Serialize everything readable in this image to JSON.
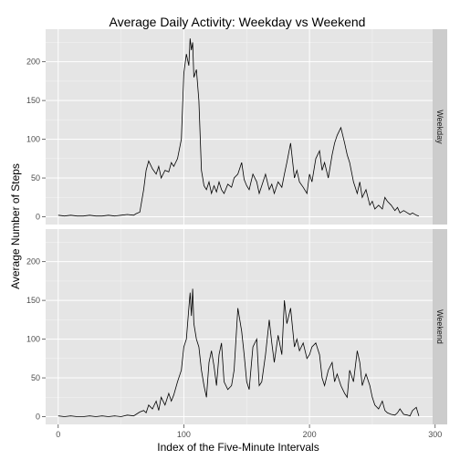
{
  "chart_data": {
    "type": "line",
    "title": "Average Daily Activity: Weekday vs Weekend",
    "xlabel": "Index of the Five-Minute Intervals",
    "ylabel": "Average Number of Steps",
    "xlim": [
      -10,
      298
    ],
    "ylim": [
      -10,
      242
    ],
    "x_ticks": [
      0,
      100,
      200,
      300
    ],
    "y_ticks": [
      0,
      50,
      100,
      150,
      200
    ],
    "grid": true,
    "panels": [
      {
        "label": "Weekday",
        "series": [
          {
            "x": [
              0,
              5,
              10,
              15,
              20,
              25,
              30,
              35,
              40,
              45,
              50,
              55,
              60,
              62,
              65,
              68,
              70,
              72,
              75,
              78,
              80,
              82,
              85,
              88,
              90,
              92,
              95,
              98,
              100,
              102,
              104,
              105,
              106,
              107,
              108,
              110,
              112,
              114,
              116,
              118,
              120,
              122,
              124,
              126,
              128,
              130,
              132,
              135,
              138,
              140,
              143,
              146,
              148,
              150,
              152,
              155,
              158,
              160,
              162,
              165,
              168,
              170,
              172,
              175,
              178,
              180,
              182,
              185,
              188,
              190,
              192,
              195,
              198,
              200,
              202,
              205,
              208,
              210,
              212,
              215,
              218,
              220,
              222,
              225,
              228,
              230,
              232,
              235,
              238,
              240,
              242,
              245,
              248,
              250,
              252,
              255,
              258,
              260,
              262,
              265,
              268,
              270,
              272,
              275,
              278,
              280,
              282,
              285,
              287
            ],
            "y": [
              2,
              1,
              2,
              1,
              1,
              2,
              1,
              1,
              2,
              1,
              2,
              3,
              2,
              4,
              6,
              35,
              60,
              72,
              62,
              55,
              65,
              50,
              60,
              58,
              70,
              65,
              75,
              100,
              185,
              210,
              195,
              230,
              215,
              225,
              180,
              190,
              150,
              60,
              40,
              35,
              45,
              30,
              40,
              32,
              45,
              35,
              30,
              42,
              38,
              50,
              55,
              70,
              48,
              40,
              35,
              55,
              45,
              30,
              40,
              55,
              35,
              42,
              30,
              45,
              38,
              55,
              70,
              95,
              50,
              60,
              45,
              38,
              30,
              55,
              45,
              75,
              85,
              60,
              70,
              50,
              80,
              95,
              105,
              115,
              95,
              80,
              70,
              45,
              30,
              45,
              25,
              35,
              15,
              20,
              10,
              15,
              10,
              25,
              20,
              15,
              8,
              12,
              5,
              8,
              5,
              3,
              5,
              2,
              1
            ]
          }
        ]
      },
      {
        "label": "Weekend",
        "series": [
          {
            "x": [
              0,
              5,
              10,
              15,
              20,
              25,
              30,
              35,
              40,
              45,
              50,
              55,
              60,
              62,
              65,
              68,
              70,
              72,
              75,
              78,
              80,
              82,
              85,
              88,
              90,
              92,
              95,
              98,
              100,
              102,
              104,
              105,
              106,
              107,
              108,
              110,
              112,
              114,
              116,
              118,
              120,
              122,
              124,
              126,
              128,
              130,
              132,
              135,
              138,
              140,
              143,
              146,
              148,
              150,
              152,
              155,
              158,
              160,
              162,
              165,
              168,
              170,
              172,
              175,
              178,
              180,
              182,
              185,
              188,
              190,
              192,
              195,
              198,
              200,
              202,
              205,
              208,
              210,
              212,
              215,
              218,
              220,
              222,
              225,
              228,
              230,
              232,
              235,
              238,
              240,
              242,
              245,
              248,
              250,
              252,
              255,
              258,
              260,
              262,
              265,
              268,
              270,
              272,
              275,
              278,
              280,
              282,
              285,
              287
            ],
            "y": [
              1,
              0,
              1,
              0,
              0,
              1,
              0,
              1,
              0,
              1,
              0,
              2,
              1,
              3,
              6,
              8,
              5,
              15,
              10,
              20,
              8,
              25,
              15,
              30,
              20,
              28,
              45,
              60,
              90,
              100,
              140,
              160,
              130,
              165,
              120,
              100,
              90,
              60,
              40,
              25,
              70,
              85,
              65,
              40,
              80,
              95,
              45,
              35,
              40,
              60,
              140,
              110,
              80,
              45,
              35,
              90,
              100,
              40,
              45,
              80,
              125,
              95,
              70,
              105,
              80,
              150,
              120,
              140,
              90,
              100,
              85,
              95,
              75,
              80,
              90,
              95,
              80,
              50,
              40,
              60,
              70,
              45,
              55,
              40,
              30,
              25,
              60,
              45,
              85,
              70,
              40,
              55,
              40,
              25,
              15,
              10,
              20,
              8,
              5,
              3,
              2,
              5,
              10,
              3,
              2,
              1,
              8,
              12,
              1
            ]
          }
        ]
      }
    ]
  }
}
